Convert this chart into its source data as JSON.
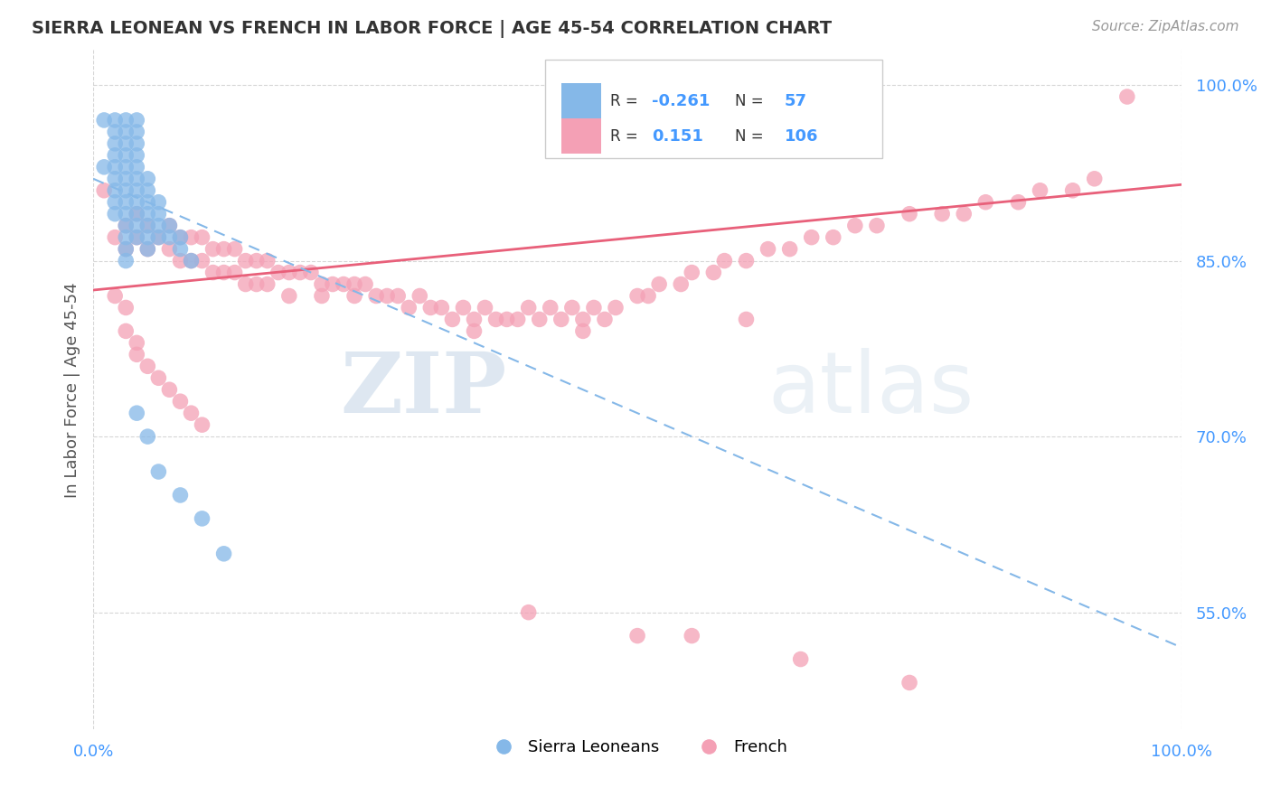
{
  "title": "SIERRA LEONEAN VS FRENCH IN LABOR FORCE | AGE 45-54 CORRELATION CHART",
  "source": "Source: ZipAtlas.com",
  "ylabel": "In Labor Force | Age 45-54",
  "xlim": [
    0.0,
    1.0
  ],
  "ylim": [
    0.45,
    1.03
  ],
  "xticks": [
    0.0,
    1.0
  ],
  "xticklabels": [
    "0.0%",
    "100.0%"
  ],
  "ytick_positions": [
    0.55,
    0.7,
    0.85,
    1.0
  ],
  "ytick_labels": [
    "55.0%",
    "70.0%",
    "85.0%",
    "100.0%"
  ],
  "R_blue": -0.261,
  "N_blue": 57,
  "R_pink": 0.151,
  "N_pink": 106,
  "blue_color": "#85B8E8",
  "pink_color": "#F4A0B5",
  "trendline_blue_color": "#85B8E8",
  "trendline_pink_color": "#E8607A",
  "watermark_zip": "ZIP",
  "watermark_atlas": "atlas",
  "legend_entries": [
    "Sierra Leoneans",
    "French"
  ],
  "blue_scatter_x": [
    0.01,
    0.01,
    0.02,
    0.02,
    0.02,
    0.02,
    0.02,
    0.02,
    0.02,
    0.02,
    0.02,
    0.03,
    0.03,
    0.03,
    0.03,
    0.03,
    0.03,
    0.03,
    0.03,
    0.03,
    0.03,
    0.03,
    0.03,
    0.03,
    0.04,
    0.04,
    0.04,
    0.04,
    0.04,
    0.04,
    0.04,
    0.04,
    0.04,
    0.04,
    0.04,
    0.05,
    0.05,
    0.05,
    0.05,
    0.05,
    0.05,
    0.05,
    0.06,
    0.06,
    0.06,
    0.06,
    0.07,
    0.07,
    0.08,
    0.08,
    0.09,
    0.04,
    0.05,
    0.06,
    0.08,
    0.1,
    0.12
  ],
  "blue_scatter_y": [
    0.97,
    0.93,
    0.97,
    0.96,
    0.95,
    0.94,
    0.93,
    0.92,
    0.91,
    0.9,
    0.89,
    0.97,
    0.96,
    0.95,
    0.94,
    0.93,
    0.92,
    0.91,
    0.9,
    0.89,
    0.88,
    0.87,
    0.86,
    0.85,
    0.97,
    0.96,
    0.95,
    0.94,
    0.93,
    0.92,
    0.91,
    0.9,
    0.89,
    0.88,
    0.87,
    0.92,
    0.91,
    0.9,
    0.89,
    0.88,
    0.87,
    0.86,
    0.9,
    0.89,
    0.88,
    0.87,
    0.88,
    0.87,
    0.87,
    0.86,
    0.85,
    0.72,
    0.7,
    0.67,
    0.65,
    0.63,
    0.6
  ],
  "pink_scatter_x": [
    0.01,
    0.02,
    0.03,
    0.03,
    0.04,
    0.04,
    0.05,
    0.05,
    0.06,
    0.07,
    0.07,
    0.08,
    0.08,
    0.09,
    0.09,
    0.1,
    0.1,
    0.11,
    0.11,
    0.12,
    0.12,
    0.13,
    0.13,
    0.14,
    0.14,
    0.15,
    0.15,
    0.16,
    0.16,
    0.17,
    0.18,
    0.18,
    0.19,
    0.2,
    0.21,
    0.21,
    0.22,
    0.23,
    0.24,
    0.24,
    0.25,
    0.26,
    0.27,
    0.28,
    0.29,
    0.3,
    0.31,
    0.32,
    0.33,
    0.34,
    0.35,
    0.36,
    0.37,
    0.38,
    0.39,
    0.4,
    0.41,
    0.42,
    0.43,
    0.44,
    0.45,
    0.46,
    0.47,
    0.48,
    0.5,
    0.51,
    0.52,
    0.54,
    0.55,
    0.57,
    0.58,
    0.6,
    0.62,
    0.64,
    0.66,
    0.68,
    0.7,
    0.72,
    0.75,
    0.78,
    0.8,
    0.82,
    0.85,
    0.87,
    0.9,
    0.92,
    0.95,
    0.02,
    0.03,
    0.03,
    0.04,
    0.04,
    0.05,
    0.06,
    0.07,
    0.08,
    0.09,
    0.1,
    0.35,
    0.4,
    0.45,
    0.5,
    0.55,
    0.6,
    0.65,
    0.75
  ],
  "pink_scatter_y": [
    0.91,
    0.87,
    0.88,
    0.86,
    0.89,
    0.87,
    0.88,
    0.86,
    0.87,
    0.88,
    0.86,
    0.87,
    0.85,
    0.87,
    0.85,
    0.87,
    0.85,
    0.86,
    0.84,
    0.86,
    0.84,
    0.86,
    0.84,
    0.85,
    0.83,
    0.85,
    0.83,
    0.85,
    0.83,
    0.84,
    0.84,
    0.82,
    0.84,
    0.84,
    0.83,
    0.82,
    0.83,
    0.83,
    0.83,
    0.82,
    0.83,
    0.82,
    0.82,
    0.82,
    0.81,
    0.82,
    0.81,
    0.81,
    0.8,
    0.81,
    0.8,
    0.81,
    0.8,
    0.8,
    0.8,
    0.81,
    0.8,
    0.81,
    0.8,
    0.81,
    0.8,
    0.81,
    0.8,
    0.81,
    0.82,
    0.82,
    0.83,
    0.83,
    0.84,
    0.84,
    0.85,
    0.85,
    0.86,
    0.86,
    0.87,
    0.87,
    0.88,
    0.88,
    0.89,
    0.89,
    0.89,
    0.9,
    0.9,
    0.91,
    0.91,
    0.92,
    0.99,
    0.82,
    0.81,
    0.79,
    0.78,
    0.77,
    0.76,
    0.75,
    0.74,
    0.73,
    0.72,
    0.71,
    0.79,
    0.55,
    0.79,
    0.53,
    0.53,
    0.8,
    0.51,
    0.49
  ],
  "blue_trend_start_x": 0.0,
  "blue_trend_end_x": 1.0,
  "blue_trend_start_y": 0.92,
  "blue_trend_end_y": 0.52,
  "pink_trend_start_x": 0.0,
  "pink_trend_end_x": 1.0,
  "pink_trend_start_y": 0.825,
  "pink_trend_end_y": 0.915
}
